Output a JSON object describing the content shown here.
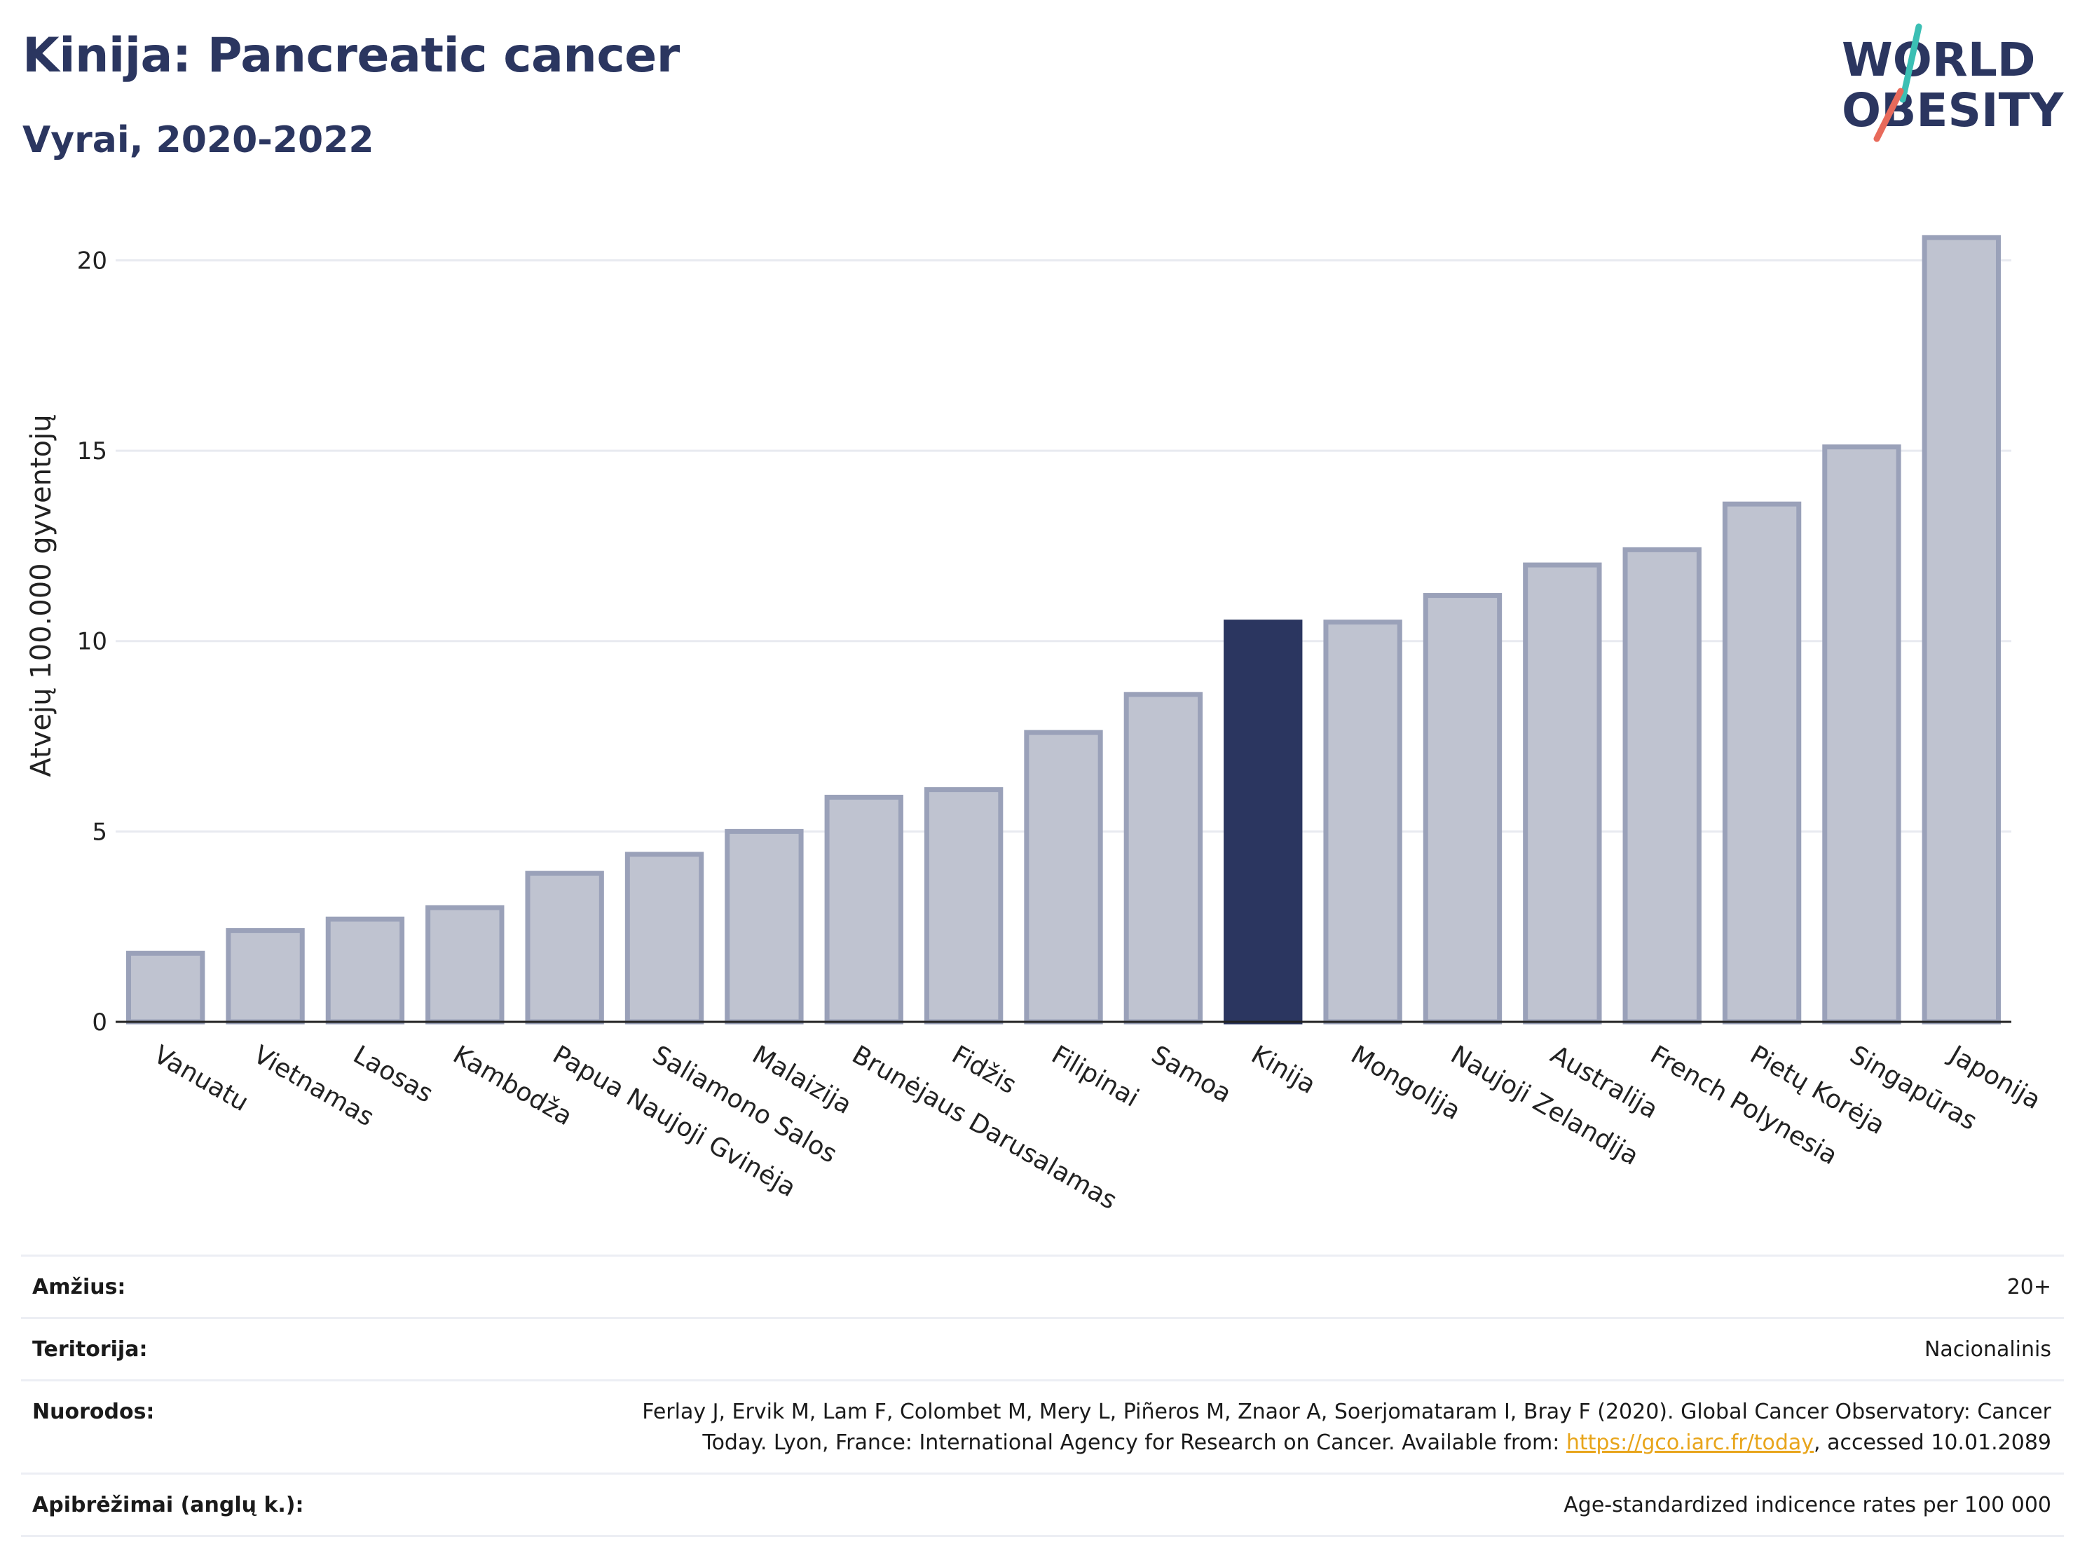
{
  "header": {
    "title": "Kinija: Pancreatic cancer",
    "subtitle": "Vyrai, 2020-2022"
  },
  "logo": {
    "line1": "WORLD",
    "line2": "OBESITY",
    "text_color": "#2b3660",
    "slash_teal": "#3bbfb4",
    "slash_coral": "#e86a5b"
  },
  "chart_data": {
    "type": "bar",
    "title": "Kinija: Pancreatic cancer",
    "subtitle": "Vyrai, 2020-2022",
    "ylabel": "Atvejų 100.000 gyventojų",
    "xlabel": "",
    "ylim": [
      0,
      21.5
    ],
    "yticks": [
      0,
      5,
      10,
      15,
      20
    ],
    "grid": true,
    "highlight": "Kinija",
    "colors": {
      "bar": "#bfc3d0",
      "bar_edge": "#9aa1b9",
      "highlight": "#2b3660"
    },
    "categories": [
      "Vanuatu",
      "Vietnamas",
      "Laosas",
      "Kambodža",
      "Papua Naujoji Gvinėja",
      "Saliamono Salos",
      "Malaizija",
      "Brunėjaus Darusalamas",
      "Fidžis",
      "Filipinai",
      "Samoa",
      "Kinija",
      "Mongolija",
      "Naujoji Zelandija",
      "Australija",
      "French Polynesia",
      "Pietų Korėja",
      "Singapūras",
      "Japonija"
    ],
    "values": [
      1.8,
      2.4,
      2.7,
      3.0,
      3.9,
      4.4,
      5.0,
      5.9,
      6.1,
      7.6,
      8.6,
      10.5,
      10.5,
      11.2,
      12.0,
      12.4,
      13.6,
      15.1,
      20.6
    ]
  },
  "info": {
    "rows": [
      {
        "key": "Amžius:",
        "value": "20+"
      },
      {
        "key": "Teritorija:",
        "value": "Nacionalinis"
      },
      {
        "key": "Nuorodos:",
        "value_line1": "Ferlay J, Ervik M, Lam F, Colombet M, Mery L, Piñeros M, Znaor A, Soerjomataram I, Bray F (2020). Global Cancer Observatory: Cancer",
        "value_line2_pre": "Today. Lyon, France: International Agency for Research on Cancer. Available from: ",
        "link": "https://gco.iarc.fr/today",
        "value_line2_post": ", accessed 10.01.2089"
      },
      {
        "key": "Apibrėžimai (anglų k.):",
        "value": "Age-standardized indicence rates per 100 000"
      }
    ]
  }
}
